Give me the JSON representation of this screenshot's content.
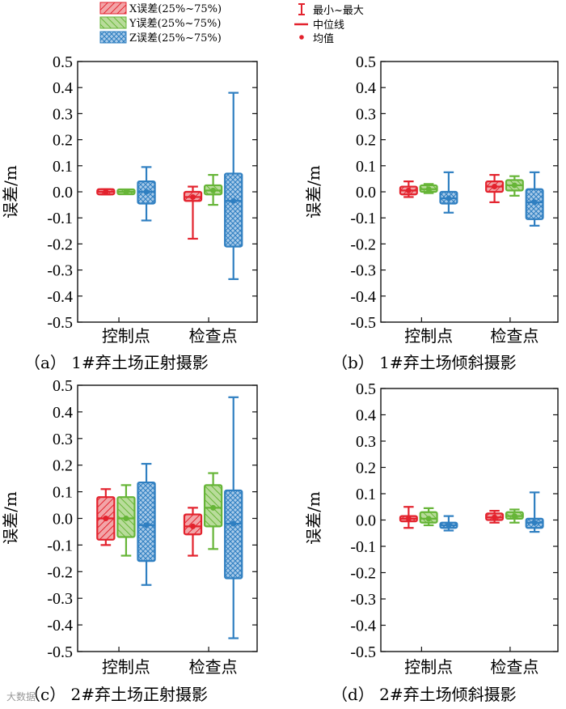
{
  "legend": {
    "x_err": "X误差(25%~75%)",
    "y_err": "Y误差(25%~75%)",
    "z_err": "Z误差(25%~75%)",
    "minmax": "最小~最大",
    "median": "中位线",
    "mean": "均值"
  },
  "colors": {
    "x": "#e3222d",
    "y": "#66b537",
    "z": "#2f7fc1",
    "axis": "#111111"
  },
  "watermark": "大数据",
  "chart_data": [
    {
      "type": "box",
      "panel": "a",
      "title": "（a） 1#弃土场正射摄影",
      "ylabel": "误差/m",
      "ylim": [
        -0.5,
        0.5
      ],
      "yticks": [
        -0.5,
        -0.4,
        -0.3,
        -0.2,
        -0.1,
        0.0,
        0.1,
        0.2,
        0.3,
        0.4,
        0.5
      ],
      "categories": [
        "控制点",
        "检查点"
      ],
      "series": [
        {
          "name": "X",
          "boxes": [
            {
              "min": -0.01,
              "q1": -0.01,
              "median": 0.0,
              "q3": 0.01,
              "max": 0.01,
              "mean": 0.0
            },
            {
              "min": -0.18,
              "q1": -0.035,
              "median": -0.02,
              "q3": 0.0,
              "max": 0.02,
              "mean": -0.02
            }
          ]
        },
        {
          "name": "Y",
          "boxes": [
            {
              "min": -0.005,
              "q1": -0.005,
              "median": 0.0,
              "q3": 0.005,
              "max": 0.005,
              "mean": 0.0
            },
            {
              "min": -0.05,
              "q1": -0.01,
              "median": 0.005,
              "q3": 0.025,
              "max": 0.065,
              "mean": 0.005
            }
          ]
        },
        {
          "name": "Z",
          "boxes": [
            {
              "min": -0.11,
              "q1": -0.045,
              "median": 0.0,
              "q3": 0.04,
              "max": 0.095,
              "mean": 0.0
            },
            {
              "min": -0.335,
              "q1": -0.21,
              "median": -0.035,
              "q3": 0.07,
              "max": 0.38,
              "mean": -0.035
            }
          ]
        }
      ]
    },
    {
      "type": "box",
      "panel": "b",
      "title": "（b） 1#弃土场倾斜摄影",
      "ylabel": "误差/m",
      "ylim": [
        -0.5,
        0.5
      ],
      "yticks": [
        -0.5,
        -0.4,
        -0.3,
        -0.2,
        -0.1,
        0.0,
        0.1,
        0.2,
        0.3,
        0.4,
        0.5
      ],
      "categories": [
        "控制点",
        "检查点"
      ],
      "series": [
        {
          "name": "X",
          "boxes": [
            {
              "min": -0.02,
              "q1": -0.01,
              "median": 0.005,
              "q3": 0.02,
              "max": 0.04,
              "mean": 0.005
            },
            {
              "min": -0.04,
              "q1": 0.0,
              "median": 0.02,
              "q3": 0.04,
              "max": 0.065,
              "mean": 0.02
            }
          ]
        },
        {
          "name": "Y",
          "boxes": [
            {
              "min": -0.005,
              "q1": 0.0,
              "median": 0.01,
              "q3": 0.025,
              "max": 0.03,
              "mean": 0.01
            },
            {
              "min": -0.015,
              "q1": 0.005,
              "median": 0.025,
              "q3": 0.045,
              "max": 0.06,
              "mean": 0.025
            }
          ]
        },
        {
          "name": "Z",
          "boxes": [
            {
              "min": -0.08,
              "q1": -0.045,
              "median": -0.025,
              "q3": 0.0,
              "max": 0.075,
              "mean": -0.025
            },
            {
              "min": -0.13,
              "q1": -0.105,
              "median": -0.04,
              "q3": 0.01,
              "max": 0.075,
              "mean": -0.04
            }
          ]
        }
      ]
    },
    {
      "type": "box",
      "panel": "c",
      "title": "（c） 2#弃土场正射摄影",
      "ylabel": "误差/m",
      "ylim": [
        -0.5,
        0.5
      ],
      "yticks": [
        -0.5,
        -0.4,
        -0.3,
        -0.2,
        -0.1,
        0.0,
        0.1,
        0.2,
        0.3,
        0.4,
        0.5
      ],
      "categories": [
        "控制点",
        "检查点"
      ],
      "series": [
        {
          "name": "X",
          "boxes": [
            {
              "min": -0.1,
              "q1": -0.08,
              "median": 0.0,
              "q3": 0.08,
              "max": 0.11,
              "mean": 0.0
            },
            {
              "min": -0.14,
              "q1": -0.06,
              "median": -0.03,
              "q3": 0.015,
              "max": 0.04,
              "mean": -0.03
            }
          ]
        },
        {
          "name": "Y",
          "boxes": [
            {
              "min": -0.14,
              "q1": -0.07,
              "median": 0.0,
              "q3": 0.08,
              "max": 0.125,
              "mean": 0.0
            },
            {
              "min": -0.115,
              "q1": -0.03,
              "median": 0.04,
              "q3": 0.125,
              "max": 0.17,
              "mean": 0.04
            }
          ]
        },
        {
          "name": "Z",
          "boxes": [
            {
              "min": -0.25,
              "q1": -0.16,
              "median": -0.025,
              "q3": 0.135,
              "max": 0.205,
              "mean": -0.025
            },
            {
              "min": -0.45,
              "q1": -0.225,
              "median": -0.02,
              "q3": 0.105,
              "max": 0.455,
              "mean": -0.02
            }
          ]
        }
      ]
    },
    {
      "type": "box",
      "panel": "d",
      "title": "（d） 2#弃土场倾斜摄影",
      "ylabel": "误差/m",
      "ylim": [
        -0.5,
        0.5
      ],
      "yticks": [
        -0.5,
        -0.4,
        -0.3,
        -0.2,
        -0.1,
        0.0,
        0.1,
        0.2,
        0.3,
        0.4,
        0.5
      ],
      "categories": [
        "控制点",
        "检查点"
      ],
      "series": [
        {
          "name": "X",
          "boxes": [
            {
              "min": -0.03,
              "q1": -0.005,
              "median": 0.005,
              "q3": 0.015,
              "max": 0.05,
              "mean": 0.005
            },
            {
              "min": -0.01,
              "q1": 0.0,
              "median": 0.01,
              "q3": 0.025,
              "max": 0.035,
              "mean": 0.01
            }
          ]
        },
        {
          "name": "Y",
          "boxes": [
            {
              "min": -0.02,
              "q1": -0.01,
              "median": 0.005,
              "q3": 0.03,
              "max": 0.045,
              "mean": 0.005
            },
            {
              "min": -0.01,
              "q1": 0.005,
              "median": 0.015,
              "q3": 0.03,
              "max": 0.04,
              "mean": 0.015
            }
          ]
        },
        {
          "name": "Z",
          "boxes": [
            {
              "min": -0.04,
              "q1": -0.03,
              "median": -0.02,
              "q3": -0.01,
              "max": 0.015,
              "mean": -0.02
            },
            {
              "min": -0.045,
              "q1": -0.03,
              "median": -0.01,
              "q3": 0.005,
              "max": 0.105,
              "mean": -0.01
            }
          ]
        }
      ]
    }
  ]
}
